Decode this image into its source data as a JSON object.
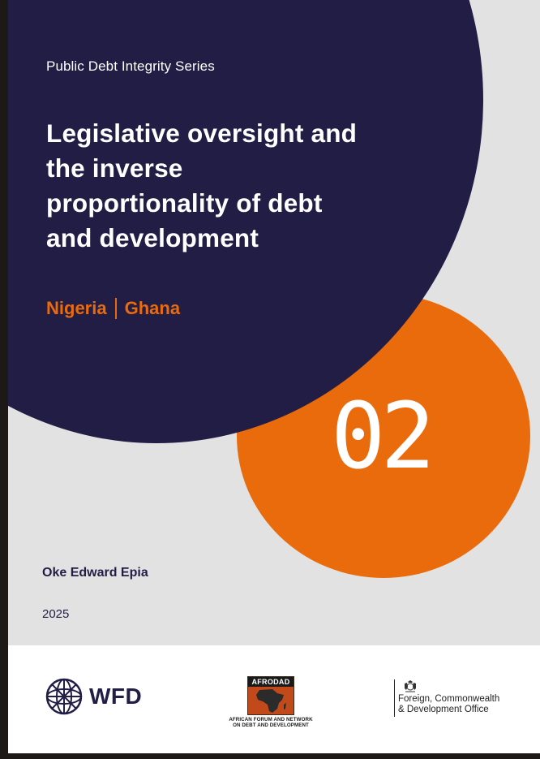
{
  "cover": {
    "series": "Public Debt Integrity Series",
    "title": "Legislative oversight and the inverse proportionality of debt and development",
    "countries": [
      "Nigeria",
      "Ghana"
    ],
    "number": "02",
    "author": "Oke Edward Epia",
    "year": "2025"
  },
  "footer": {
    "wfd": "WFD",
    "afrodad_name": "AFRODAD",
    "afrodad_caption_line1": "AFRICAN FORUM AND NETWORK",
    "afrodad_caption_line2": "ON DEBT AND DEVELOPMENT",
    "fcdo_line1": "Foreign, Commonwealth",
    "fcdo_line2": "& Development Office"
  },
  "colors": {
    "navy": "#221d45",
    "orange": "#ea6b0b",
    "background": "#e2e2e2"
  },
  "icons": [
    "wfd-globe-icon",
    "afrodad-africa-logo",
    "royal-crest-icon"
  ]
}
